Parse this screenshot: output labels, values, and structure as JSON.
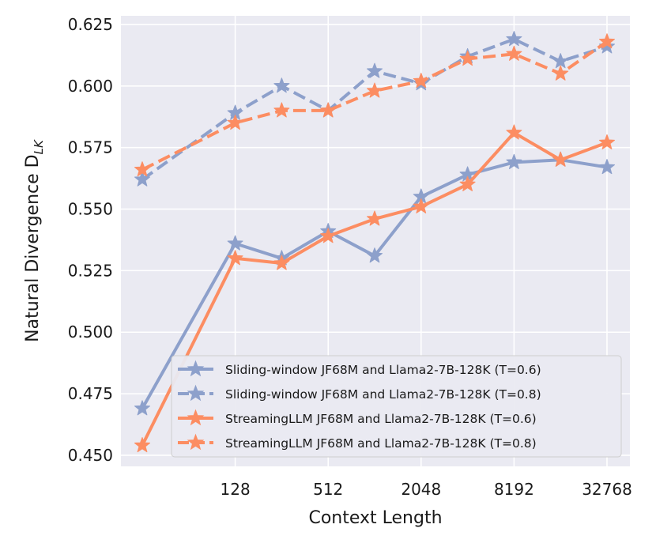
{
  "chart_data": {
    "type": "line",
    "title": "",
    "xlabel": "Context Length",
    "ylabel": "Natural Divergence D",
    "ylabel_subscript": "LK",
    "x_scale": "log2",
    "x": [
      32,
      128,
      256,
      512,
      1024,
      2048,
      4096,
      8192,
      16384,
      32768
    ],
    "x_ticks": [
      128,
      512,
      2048,
      8192,
      32768
    ],
    "x_tick_labels": [
      "128",
      "512",
      "2048",
      "8192",
      "32768"
    ],
    "y_ticks": [
      0.45,
      0.475,
      0.5,
      0.525,
      0.55,
      0.575,
      0.6,
      0.625
    ],
    "y_tick_labels": [
      "0.450",
      "0.475",
      "0.500",
      "0.525",
      "0.550",
      "0.575",
      "0.600",
      "0.625"
    ],
    "ylim": [
      0.4455,
      0.6285
    ],
    "grid": true,
    "legend_position": "lower-right",
    "series": [
      {
        "name": "Sliding-window JF68M and Llama2-7B-128K (T=0.6)",
        "color": "#8DA0CB",
        "dash": "solid",
        "marker": "star",
        "values": [
          0.469,
          0.536,
          0.53,
          0.541,
          0.531,
          0.555,
          0.564,
          0.569,
          0.57,
          0.567
        ]
      },
      {
        "name": "Sliding-window JF68M and Llama2-7B-128K (T=0.8)",
        "color": "#8DA0CB",
        "dash": "dashed",
        "marker": "star",
        "values": [
          0.562,
          0.589,
          0.6,
          0.59,
          0.606,
          0.601,
          0.612,
          0.619,
          0.61,
          0.616
        ]
      },
      {
        "name": "StreamingLLM JF68M and Llama2-7B-128K (T=0.6)",
        "color": "#FC8D62",
        "dash": "solid",
        "marker": "star",
        "values": [
          0.454,
          0.53,
          0.528,
          0.539,
          0.546,
          0.551,
          0.56,
          0.581,
          0.57,
          0.577
        ]
      },
      {
        "name": "StreamingLLM JF68M and Llama2-7B-128K (T=0.8)",
        "color": "#FC8D62",
        "dash": "dashed",
        "marker": "star",
        "values": [
          0.566,
          0.585,
          0.59,
          0.59,
          0.598,
          0.602,
          0.611,
          0.613,
          0.605,
          0.618
        ]
      }
    ]
  }
}
